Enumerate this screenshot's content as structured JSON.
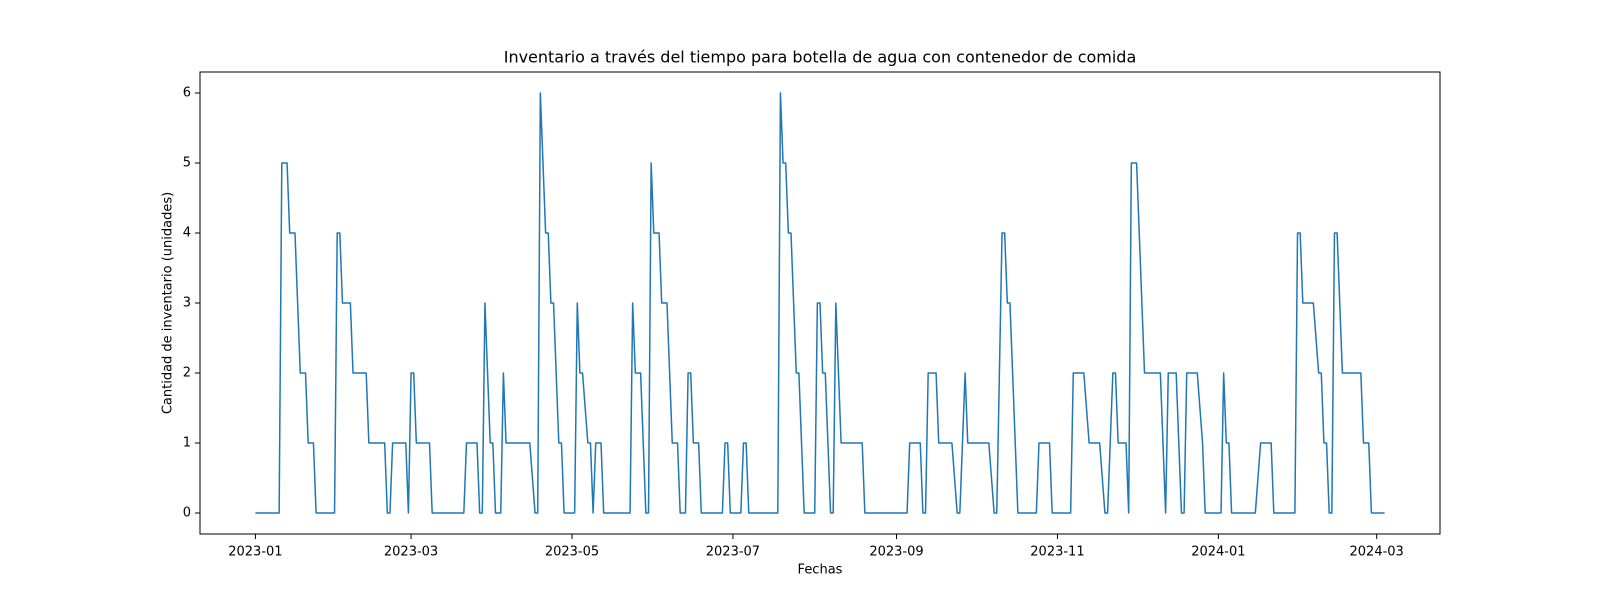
{
  "chart_data": {
    "type": "line",
    "title": "Inventario a través del tiempo para botella de agua con contenedor de comida",
    "xlabel": "Fechas",
    "ylabel": "Cantidad de inventario (unidades)",
    "color": "#1f77b4",
    "grid": false,
    "xlim": [
      "2022-12-11",
      "2024-03-25"
    ],
    "ylim": [
      -0.3,
      6.3
    ],
    "xticks": [
      {
        "value": "2023-01-01",
        "label": "2023-01"
      },
      {
        "value": "2023-03-01",
        "label": "2023-03"
      },
      {
        "value": "2023-05-01",
        "label": "2023-05"
      },
      {
        "value": "2023-07-01",
        "label": "2023-07"
      },
      {
        "value": "2023-09-01",
        "label": "2023-09"
      },
      {
        "value": "2023-11-01",
        "label": "2023-11"
      },
      {
        "value": "2024-01-01",
        "label": "2024-01"
      },
      {
        "value": "2024-03-01",
        "label": "2024-03"
      }
    ],
    "yticks": [
      0,
      1,
      2,
      3,
      4,
      5,
      6
    ],
    "x": [
      "2023-01-01",
      "2023-01-10",
      "2023-01-11",
      "2023-01-13",
      "2023-01-14",
      "2023-01-16",
      "2023-01-17",
      "2023-01-18",
      "2023-01-20",
      "2023-01-21",
      "2023-01-23",
      "2023-01-24",
      "2023-01-31",
      "2023-02-01",
      "2023-02-02",
      "2023-02-03",
      "2023-02-06",
      "2023-02-07",
      "2023-02-12",
      "2023-02-13",
      "2023-02-19",
      "2023-02-20",
      "2023-02-21",
      "2023-02-22",
      "2023-02-27",
      "2023-02-28",
      "2023-03-01",
      "2023-03-02",
      "2023-03-03",
      "2023-03-08",
      "2023-03-09",
      "2023-03-21",
      "2023-03-22",
      "2023-03-26",
      "2023-03-27",
      "2023-03-28",
      "2023-03-29",
      "2023-03-31",
      "2023-04-01",
      "2023-04-02",
      "2023-04-04",
      "2023-04-05",
      "2023-04-06",
      "2023-04-15",
      "2023-04-17",
      "2023-04-18",
      "2023-04-19",
      "2023-04-21",
      "2023-04-22",
      "2023-04-23",
      "2023-04-24",
      "2023-04-26",
      "2023-04-27",
      "2023-04-28",
      "2023-05-02",
      "2023-05-03",
      "2023-05-04",
      "2023-05-05",
      "2023-05-07",
      "2023-05-08",
      "2023-05-09",
      "2023-05-10",
      "2023-05-12",
      "2023-05-13",
      "2023-05-23",
      "2023-05-24",
      "2023-05-25",
      "2023-05-27",
      "2023-05-29",
      "2023-05-30",
      "2023-05-31",
      "2023-06-01",
      "2023-06-03",
      "2023-06-04",
      "2023-06-06",
      "2023-06-08",
      "2023-06-10",
      "2023-06-11",
      "2023-06-13",
      "2023-06-14",
      "2023-06-15",
      "2023-06-16",
      "2023-06-18",
      "2023-06-19",
      "2023-06-27",
      "2023-06-28",
      "2023-06-29",
      "2023-06-30",
      "2023-07-04",
      "2023-07-05",
      "2023-07-06",
      "2023-07-07",
      "2023-07-18",
      "2023-07-19",
      "2023-07-20",
      "2023-07-21",
      "2023-07-22",
      "2023-07-23",
      "2023-07-25",
      "2023-07-26",
      "2023-07-28",
      "2023-08-01",
      "2023-08-02",
      "2023-08-03",
      "2023-08-04",
      "2023-08-05",
      "2023-08-07",
      "2023-08-08",
      "2023-08-09",
      "2023-08-11",
      "2023-08-19",
      "2023-08-20",
      "2023-09-05",
      "2023-09-06",
      "2023-09-10",
      "2023-09-11",
      "2023-09-12",
      "2023-09-13",
      "2023-09-16",
      "2023-09-17",
      "2023-09-22",
      "2023-09-24",
      "2023-09-25",
      "2023-09-27",
      "2023-09-28",
      "2023-10-06",
      "2023-10-08",
      "2023-10-09",
      "2023-10-11",
      "2023-10-12",
      "2023-10-13",
      "2023-10-14",
      "2023-10-17",
      "2023-10-24",
      "2023-10-25",
      "2023-10-29",
      "2023-10-30",
      "2023-11-06",
      "2023-11-07",
      "2023-11-11",
      "2023-11-13",
      "2023-11-17",
      "2023-11-19",
      "2023-11-20",
      "2023-11-22",
      "2023-11-23",
      "2023-11-24",
      "2023-11-27",
      "2023-11-28",
      "2023-11-29",
      "2023-12-01",
      "2023-12-02",
      "2023-12-03",
      "2023-12-04",
      "2023-12-10",
      "2023-12-12",
      "2023-12-13",
      "2023-12-16",
      "2023-12-18",
      "2023-12-19",
      "2023-12-20",
      "2023-12-24",
      "2023-12-26",
      "2023-12-27",
      "2024-01-02",
      "2024-01-03",
      "2024-01-04",
      "2024-01-05",
      "2024-01-06",
      "2024-01-15",
      "2024-01-17",
      "2024-01-21",
      "2024-01-22",
      "2024-01-30",
      "2024-01-31",
      "2024-02-01",
      "2024-02-02",
      "2024-02-06",
      "2024-02-08",
      "2024-02-09",
      "2024-02-10",
      "2024-02-11",
      "2024-02-12",
      "2024-02-13",
      "2024-02-14",
      "2024-02-15",
      "2024-02-17",
      "2024-02-24",
      "2024-02-25",
      "2024-02-27",
      "2024-02-28",
      "2024-03-04"
    ],
    "values": [
      0,
      0,
      5,
      5,
      4,
      4,
      3,
      2,
      2,
      1,
      1,
      0,
      0,
      4,
      4,
      3,
      3,
      2,
      2,
      1,
      1,
      0,
      0,
      1,
      1,
      0,
      2,
      2,
      1,
      1,
      0,
      0,
      1,
      1,
      0,
      0,
      3,
      1,
      1,
      0,
      0,
      2,
      1,
      1,
      0,
      0,
      6,
      4,
      4,
      3,
      3,
      1,
      1,
      0,
      0,
      3,
      2,
      2,
      1,
      1,
      0,
      1,
      1,
      0,
      0,
      3,
      2,
      2,
      0,
      0,
      5,
      4,
      4,
      3,
      3,
      1,
      1,
      0,
      0,
      2,
      2,
      1,
      1,
      0,
      0,
      1,
      1,
      0,
      0,
      1,
      1,
      0,
      0,
      6,
      5,
      5,
      4,
      4,
      2,
      2,
      0,
      0,
      3,
      3,
      2,
      2,
      0,
      0,
      3,
      1,
      1,
      0,
      0,
      1,
      1,
      0,
      0,
      2,
      2,
      1,
      1,
      0,
      0,
      2,
      1,
      1,
      0,
      0,
      4,
      4,
      3,
      3,
      0,
      0,
      1,
      1,
      0,
      0,
      2,
      2,
      1,
      1,
      0,
      0,
      2,
      2,
      1,
      1,
      0,
      5,
      5,
      4,
      3,
      2,
      2,
      0,
      2,
      2,
      0,
      0,
      2,
      2,
      1,
      0,
      0,
      2,
      1,
      1,
      0,
      0,
      1,
      1,
      0,
      0,
      4,
      4,
      3,
      3,
      2,
      2,
      1,
      1,
      0,
      0,
      4,
      4,
      2,
      2,
      1,
      1,
      0,
      0
    ]
  }
}
